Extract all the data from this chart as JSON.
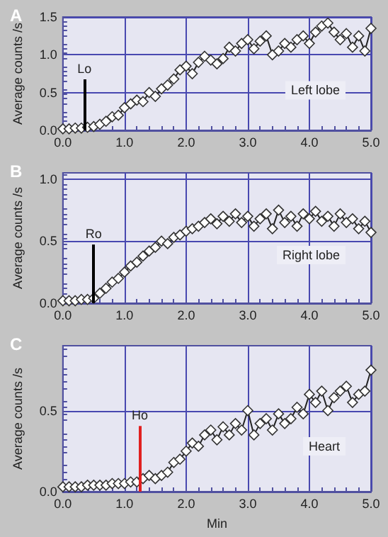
{
  "chart_data": [
    {
      "type": "line",
      "title": "A",
      "ylabel": "Average counts /s",
      "marker": "diamond",
      "grid": true,
      "xlim": [
        0,
        5
      ],
      "ylim": [
        0,
        1.5
      ],
      "xticks": [
        {
          "value": 0,
          "label": "0.0"
        },
        {
          "value": 1,
          "label": "1.0"
        },
        {
          "value": 2,
          "label": "2.0"
        },
        {
          "value": 3,
          "label": "3.0"
        },
        {
          "value": 4,
          "label": "4.0"
        },
        {
          "value": 5,
          "label": "5.0"
        }
      ],
      "yticks": [
        {
          "value": 0,
          "label": "0.0"
        },
        {
          "value": 0.5,
          "label": "0.5"
        },
        {
          "value": 1,
          "label": "1.0"
        },
        {
          "value": 1.5,
          "label": "1.5"
        }
      ],
      "x": [
        0,
        0.1,
        0.2,
        0.3,
        0.4,
        0.5,
        0.6,
        0.7,
        0.8,
        0.9,
        1,
        1.1,
        1.2,
        1.3,
        1.4,
        1.5,
        1.6,
        1.7,
        1.8,
        1.9,
        2,
        2.1,
        2.2,
        2.3,
        2.4,
        2.5,
        2.6,
        2.7,
        2.8,
        2.9,
        3,
        3.1,
        3.2,
        3.3,
        3.4,
        3.5,
        3.6,
        3.7,
        3.8,
        3.9,
        4,
        4.1,
        4.2,
        4.3,
        4.4,
        4.5,
        4.6,
        4.7,
        4.8,
        4.9,
        5
      ],
      "series": [
        {
          "color": "#ffffff",
          "values": [
            0.02,
            0.02,
            0.03,
            0.03,
            0.04,
            0.05,
            0.08,
            0.12,
            0.18,
            0.2,
            0.3,
            0.35,
            0.4,
            0.38,
            0.5,
            0.45,
            0.55,
            0.6,
            0.68,
            0.8,
            0.85,
            0.75,
            0.9,
            0.98,
            0.93,
            0.88,
            0.95,
            1.1,
            1.05,
            1.15,
            1.2,
            1.08,
            1.18,
            1.25,
            1.0,
            1.05,
            1.15,
            1.1,
            1.2,
            1.25,
            1.15,
            1.3,
            1.38,
            1.42,
            1.3,
            1.2,
            1.28,
            1.1,
            1.25,
            1.05,
            1.35
          ]
        }
      ],
      "ref_lines": [
        {
          "axis": "x",
          "value": 0.35,
          "label": "Lo",
          "color": "#000000"
        }
      ],
      "annotations": [
        "Left lobe"
      ]
    },
    {
      "type": "line",
      "title": "B",
      "ylabel": "Average counts /s",
      "marker": "diamond",
      "grid": true,
      "xlim": [
        0,
        5
      ],
      "ylim": [
        0,
        1.05
      ],
      "xticks": [
        {
          "value": 0,
          "label": "0.0"
        },
        {
          "value": 1,
          "label": "1.0"
        },
        {
          "value": 2,
          "label": "2.0"
        },
        {
          "value": 3,
          "label": "3.0"
        },
        {
          "value": 4,
          "label": "4.0"
        },
        {
          "value": 5,
          "label": "5.0"
        }
      ],
      "yticks": [
        {
          "value": 0,
          "label": "0.0"
        },
        {
          "value": 0.5,
          "label": "0.5"
        },
        {
          "value": 1,
          "label": "1.0"
        }
      ],
      "x": [
        0,
        0.1,
        0.2,
        0.3,
        0.4,
        0.5,
        0.6,
        0.7,
        0.8,
        0.9,
        1,
        1.1,
        1.2,
        1.3,
        1.4,
        1.5,
        1.6,
        1.7,
        1.8,
        1.9,
        2,
        2.1,
        2.2,
        2.3,
        2.4,
        2.5,
        2.6,
        2.7,
        2.8,
        2.9,
        3,
        3.1,
        3.2,
        3.3,
        3.4,
        3.5,
        3.6,
        3.7,
        3.8,
        3.9,
        4,
        4.1,
        4.2,
        4.3,
        4.4,
        4.5,
        4.6,
        4.7,
        4.8,
        4.9,
        5
      ],
      "series": [
        {
          "color": "#ffffff",
          "values": [
            0.02,
            0.02,
            0.02,
            0.03,
            0.03,
            0.04,
            0.08,
            0.12,
            0.17,
            0.2,
            0.25,
            0.3,
            0.33,
            0.38,
            0.42,
            0.45,
            0.5,
            0.48,
            0.53,
            0.55,
            0.58,
            0.6,
            0.62,
            0.65,
            0.68,
            0.64,
            0.7,
            0.66,
            0.72,
            0.65,
            0.7,
            0.62,
            0.68,
            0.72,
            0.6,
            0.75,
            0.65,
            0.7,
            0.62,
            0.72,
            0.68,
            0.74,
            0.66,
            0.7,
            0.62,
            0.72,
            0.65,
            0.68,
            0.6,
            0.66,
            0.57
          ]
        }
      ],
      "ref_lines": [
        {
          "axis": "x",
          "value": 0.5,
          "label": "Ro",
          "color": "#000000"
        }
      ],
      "annotations": [
        "Right lobe"
      ]
    },
    {
      "type": "line",
      "title": "C",
      "xlabel": "Min",
      "ylabel": "Average counts /s",
      "marker": "diamond",
      "grid": true,
      "xlim": [
        0,
        5
      ],
      "ylim": [
        0,
        0.9
      ],
      "xticks": [
        {
          "value": 0,
          "label": "0.0"
        },
        {
          "value": 1,
          "label": "1.0"
        },
        {
          "value": 2,
          "label": "2.0"
        },
        {
          "value": 3,
          "label": "3.0"
        },
        {
          "value": 4,
          "label": "4.0"
        },
        {
          "value": 5,
          "label": "5.0"
        }
      ],
      "yticks": [
        {
          "value": 0,
          "label": "0.0"
        },
        {
          "value": 0.5,
          "label": "0.5"
        }
      ],
      "x": [
        0,
        0.1,
        0.2,
        0.3,
        0.4,
        0.5,
        0.6,
        0.7,
        0.8,
        0.9,
        1,
        1.1,
        1.2,
        1.3,
        1.4,
        1.5,
        1.6,
        1.7,
        1.8,
        1.9,
        2,
        2.1,
        2.2,
        2.3,
        2.4,
        2.5,
        2.6,
        2.7,
        2.8,
        2.9,
        3,
        3.1,
        3.2,
        3.3,
        3.4,
        3.5,
        3.6,
        3.7,
        3.8,
        3.9,
        4,
        4.1,
        4.2,
        4.3,
        4.4,
        4.5,
        4.6,
        4.7,
        4.8,
        4.9,
        5
      ],
      "series": [
        {
          "color": "#ffffff",
          "values": [
            0.03,
            0.03,
            0.03,
            0.03,
            0.04,
            0.04,
            0.04,
            0.04,
            0.05,
            0.05,
            0.05,
            0.06,
            0.06,
            0.08,
            0.1,
            0.08,
            0.1,
            0.12,
            0.18,
            0.2,
            0.25,
            0.3,
            0.28,
            0.35,
            0.38,
            0.32,
            0.4,
            0.35,
            0.42,
            0.38,
            0.5,
            0.35,
            0.42,
            0.45,
            0.38,
            0.48,
            0.42,
            0.45,
            0.52,
            0.48,
            0.6,
            0.55,
            0.62,
            0.5,
            0.58,
            0.62,
            0.65,
            0.55,
            0.6,
            0.62,
            0.75
          ]
        }
      ],
      "ref_lines": [
        {
          "axis": "x",
          "value": 1.25,
          "label": "Ho",
          "color": "#e02020"
        }
      ],
      "annotations": [
        "Heart"
      ]
    }
  ]
}
